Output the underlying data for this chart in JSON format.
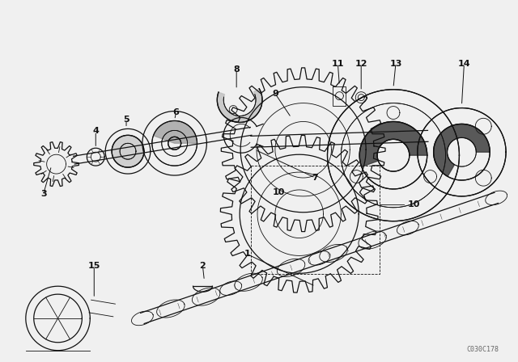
{
  "background_color": "#f0f0f0",
  "line_color": "#111111",
  "figure_width": 6.4,
  "figure_height": 4.48,
  "dpi": 100,
  "watermark": "C030C178"
}
